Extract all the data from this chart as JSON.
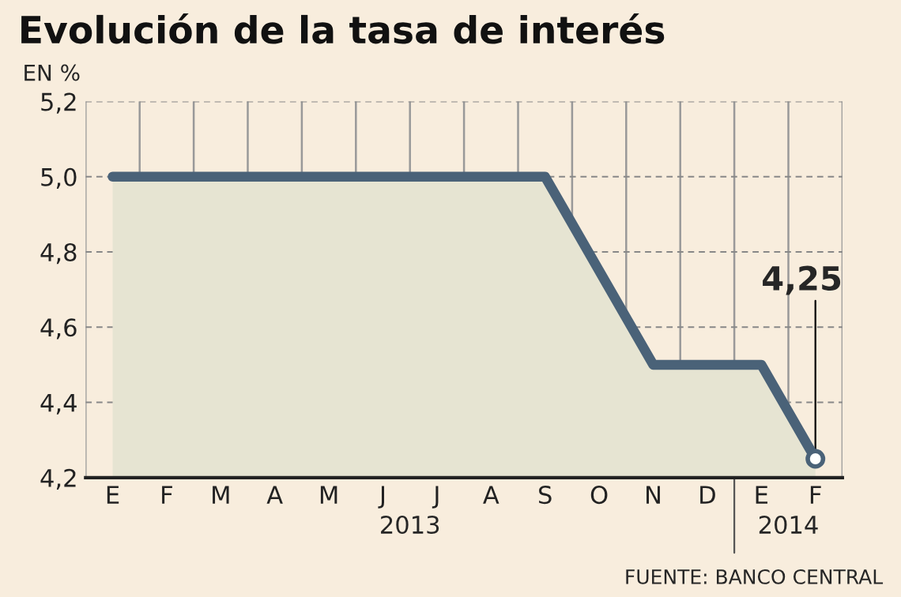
{
  "chart_data": {
    "type": "area",
    "title": "Evolución de la tasa de interés",
    "ylabel": "EN %",
    "categories": [
      "E",
      "F",
      "M",
      "A",
      "M",
      "J",
      "J",
      "A",
      "S",
      "O",
      "N",
      "D",
      "E",
      "F"
    ],
    "series": [
      {
        "color": "#4a6278",
        "values": [
          5.0,
          5.0,
          5.0,
          5.0,
          5.0,
          5.0,
          5.0,
          5.0,
          5.0,
          4.75,
          4.5,
          4.5,
          4.5,
          4.25
        ],
        "value_labels": [
          null,
          null,
          null,
          null,
          null,
          null,
          null,
          null,
          null,
          null,
          null,
          null,
          null,
          "4,25"
        ]
      }
    ],
    "ylim": [
      4.2,
      5.2
    ],
    "yticks": [
      {
        "value": 4.2,
        "label": "4,2"
      },
      {
        "value": 4.4,
        "label": "4,4"
      },
      {
        "value": 4.6,
        "label": "4,6"
      },
      {
        "value": 4.8,
        "label": "4,8"
      },
      {
        "value": 5.0,
        "label": "5,0"
      },
      {
        "value": 5.2,
        "label": "5,2"
      }
    ],
    "grid": true,
    "annotations": [
      "2013",
      "2014",
      "FUENTE: BANCO CENTRAL"
    ]
  }
}
